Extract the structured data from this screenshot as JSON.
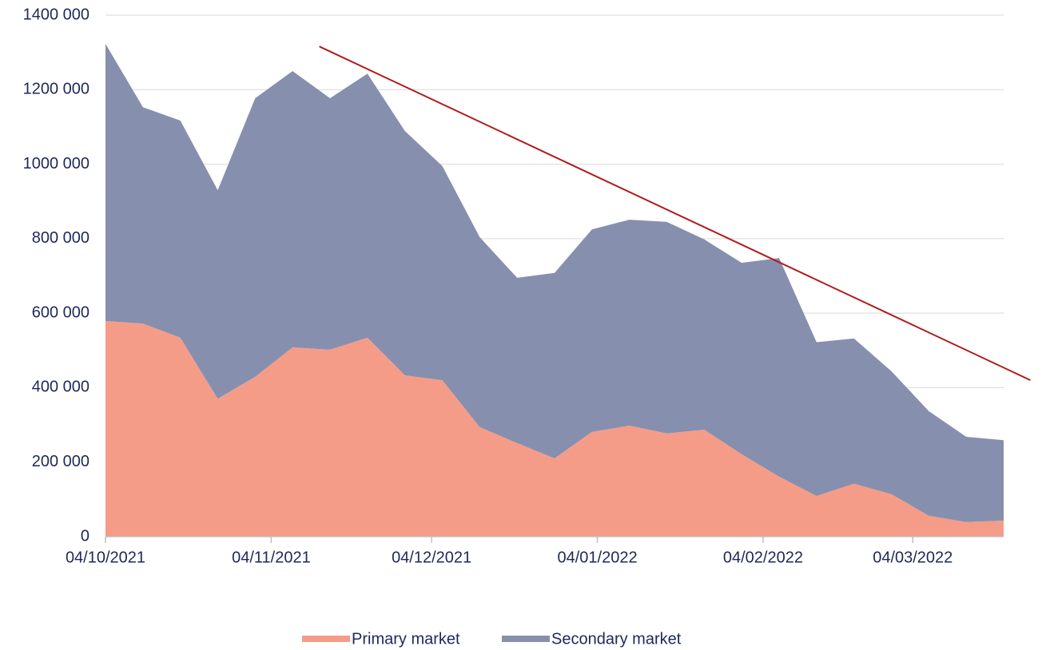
{
  "chart_data": {
    "type": "stacked_area",
    "x": [
      "2021-10-04",
      "2021-10-11",
      "2021-10-18",
      "2021-10-25",
      "2021-11-01",
      "2021-11-08",
      "2021-11-15",
      "2021-11-22",
      "2021-11-29",
      "2021-12-06",
      "2021-12-13",
      "2021-12-20",
      "2021-12-27",
      "2022-01-03",
      "2022-01-10",
      "2022-01-17",
      "2022-01-24",
      "2022-01-31",
      "2022-02-07",
      "2022-02-14",
      "2022-02-21",
      "2022-02-28",
      "2022-03-07",
      "2022-03-14",
      "2022-03-21"
    ],
    "series": [
      {
        "name": "Primary market",
        "color": "#f59c88",
        "values": [
          579000,
          572000,
          534000,
          370000,
          429000,
          508000,
          502000,
          534000,
          433000,
          420000,
          294000,
          251000,
          210000,
          281000,
          298000,
          277000,
          287000,
          221000,
          161000,
          109000,
          142000,
          114000,
          56000,
          39000,
          43000
        ]
      },
      {
        "name": "Secondary market",
        "color": "#878fae",
        "values": [
          744000,
          581000,
          583000,
          560000,
          748000,
          742000,
          675000,
          709000,
          656000,
          575000,
          510000,
          444000,
          498000,
          544000,
          553000,
          568000,
          511000,
          514000,
          587000,
          413000,
          390000,
          330000,
          281000,
          229000,
          216000
        ]
      }
    ],
    "trend": {
      "x": [
        "2021-11-13",
        "2022-03-26"
      ],
      "values": [
        1316000,
        420000
      ],
      "color": "#b01c1c"
    },
    "xlim": [
      "2021-10-04",
      "2022-03-21"
    ],
    "xticks": [
      {
        "value": "2021-10-04",
        "label": "04/10/2021"
      },
      {
        "value": "2021-11-04",
        "label": "04/11/2021"
      },
      {
        "value": "2021-12-04",
        "label": "04/12/2021"
      },
      {
        "value": "2022-01-04",
        "label": "04/01/2022"
      },
      {
        "value": "2022-02-04",
        "label": "04/02/2022"
      },
      {
        "value": "2022-03-04",
        "label": "04/03/2022"
      }
    ],
    "ylim": [
      0,
      1400000
    ],
    "yticks": [
      0,
      {
        "value": 200000,
        "label": "200 000"
      },
      {
        "value": 400000,
        "label": "400 000"
      },
      {
        "value": 600000,
        "label": "600 000"
      },
      {
        "value": 800000,
        "label": "800 000"
      },
      {
        "value": 1000000,
        "label": "1000 000"
      },
      {
        "value": 1200000,
        "label": "1200 000"
      },
      {
        "value": 1400000,
        "label": "1400 000"
      }
    ],
    "grid": true,
    "legend": "bottom"
  }
}
